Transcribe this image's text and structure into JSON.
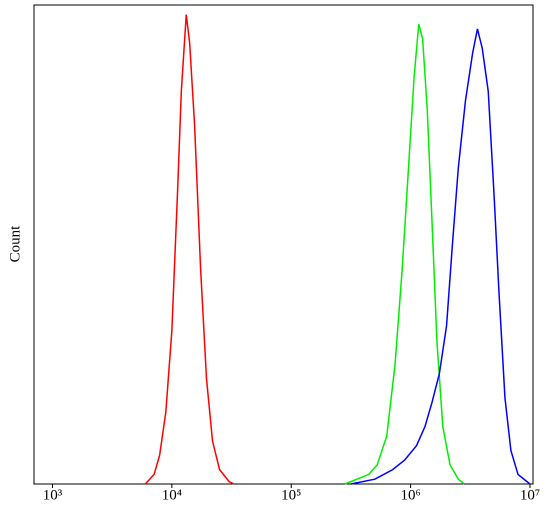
{
  "chart_data": {
    "type": "line",
    "y_label": "Count",
    "xscale": "log",
    "xlim": [
      700,
      10600000
    ],
    "ylim": [
      0,
      100
    ],
    "xticks": [
      {
        "value": 1000,
        "label": "10³"
      },
      {
        "value": 10000,
        "label": "10⁴"
      },
      {
        "value": 100000,
        "label": "10⁵"
      },
      {
        "value": 1000000,
        "label": "10⁶"
      },
      {
        "value": 10000000,
        "label": "10⁷"
      }
    ],
    "series": [
      {
        "color": "#ff0000",
        "x": [
          6000,
          7100,
          7900,
          8900,
          10000,
          11200,
          12000,
          13200,
          14100,
          15500,
          17400,
          19500,
          21900,
          25100,
          30200,
          33100
        ],
        "values": [
          0,
          2,
          6,
          15,
          32,
          62,
          82,
          98,
          92,
          75,
          45,
          22,
          9,
          3,
          0.5,
          0
        ]
      },
      {
        "color": "#00ee00",
        "x": [
          282000,
          355000,
          447000,
          525000,
          631000,
          741000,
          851000,
          955000,
          1070000,
          1170000,
          1260000,
          1380000,
          1510000,
          1660000,
          1860000,
          2140000,
          2510000,
          2820000
        ],
        "values": [
          0,
          1,
          2,
          4,
          10,
          25,
          45,
          65,
          85,
          96,
          93,
          78,
          55,
          30,
          12,
          4,
          1,
          0
        ]
      },
      {
        "color": "#0000ff",
        "x": [
          316000,
          501000,
          708000,
          891000,
          1120000,
          1320000,
          1510000,
          1740000,
          2000000,
          2240000,
          2510000,
          2880000,
          3310000,
          3630000,
          3980000,
          4470000,
          5010000,
          5500000,
          6170000,
          6920000,
          7940000,
          10000000
        ],
        "values": [
          0,
          1,
          3,
          5,
          8,
          12,
          17,
          23,
          33,
          50,
          66,
          80,
          90,
          95,
          91,
          82,
          60,
          40,
          18,
          7,
          2,
          0
        ]
      }
    ]
  }
}
